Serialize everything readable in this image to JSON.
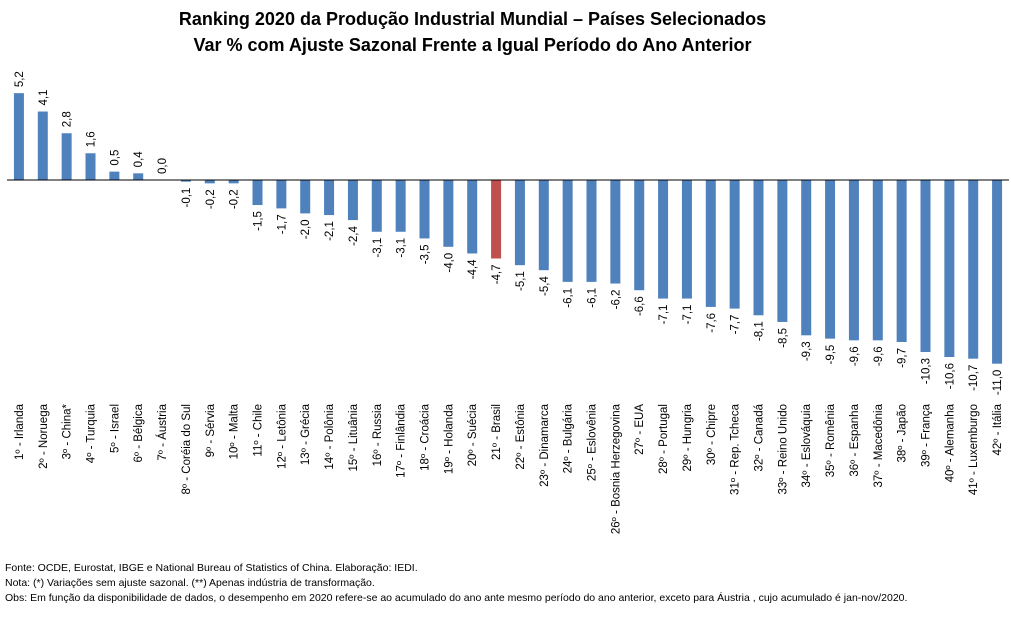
{
  "title_line1": "Ranking 2020 da Produção Industrial Mundial – Países Selecionados",
  "title_line2": "Var % com Ajuste Sazonal Frente a Igual Período do Ano Anterior",
  "notes": {
    "source": "Fonte:  OCDE, Eurostat, IBGE e National Bureau of Statistics of China. Elaboração: IEDI.",
    "note": "Nota: (*) Variações sem ajuste sazonal. (**) Apenas indústria de transformação.",
    "obs": "Obs: Em função da disponibilidade de dados, o desempenho  em 2020 refere-se ao acumulado do ano ante mesmo período do ano anterior, exceto para Áustria , cujo acumulado é jan-nov/2020."
  },
  "chart_data": {
    "type": "bar",
    "title": "Ranking 2020 da Produção Industrial Mundial – Países Selecionados — Var % com Ajuste Sazonal Frente a Igual Período do Ano Anterior",
    "categories": [
      "1º - Irlanda",
      "2º - Noruega",
      "3º - China*",
      "4º - Turquia",
      "5º - Israel",
      "6º - Bélgica",
      "7º - Áustria",
      "8º - Coréia do Sul",
      "9º - Sérvia",
      "10º - Malta",
      "11º - Chile",
      "12º - Letônia",
      "13º - Grécia",
      "14º - Polônia",
      "15º - Lituânia",
      "16º - Russia",
      "17º - Finlândia",
      "18º - Croácia",
      "19º - Holanda",
      "20º - Suécia",
      "21º - Brasil",
      "22º - Estônia",
      "23º - Dinamarca",
      "24º - Bulgária",
      "25º - Eslovênia",
      "26º - Bosnia Herzegovina",
      "27º - EUA",
      "28º - Portugal",
      "29º - Hungria",
      "30º - Chipre",
      "31º - Rep. Tcheca",
      "32º - Canadá",
      "33º - Reino Unido",
      "34º - Eslováquia",
      "35º - Romênia",
      "36º - Espanha",
      "37º - Macedônia",
      "38º - Japão",
      "39º - França",
      "40º - Alemanha",
      "41º - Luxemburgo",
      "42º - Itália"
    ],
    "values": [
      5.2,
      4.1,
      2.8,
      1.6,
      0.5,
      0.4,
      0.0,
      -0.1,
      -0.2,
      -0.2,
      -1.5,
      -1.7,
      -2.0,
      -2.1,
      -2.4,
      -3.1,
      -3.1,
      -3.5,
      -4.0,
      -4.4,
      -4.7,
      -5.1,
      -5.4,
      -6.1,
      -6.1,
      -6.2,
      -6.6,
      -7.1,
      -7.1,
      -7.6,
      -7.7,
      -8.1,
      -8.5,
      -9.3,
      -9.5,
      -9.6,
      -9.6,
      -9.7,
      -10.3,
      -10.6,
      -10.7,
      -11.0
    ],
    "value_labels": [
      "5,2",
      "4,1",
      "2,8",
      "1,6",
      "0,5",
      "0,4",
      "0,0",
      "-0,1",
      "-0,2",
      "-0,2",
      "-1,5",
      "-1,7",
      "-2,0",
      "-2,1",
      "-2,4",
      "-3,1",
      "-3,1",
      "-3,5",
      "-4,0",
      "-4,4",
      "-4,7",
      "-5,1",
      "-5,4",
      "-6,1",
      "-6,1",
      "-6,2",
      "-6,6",
      "-7,1",
      "-7,1",
      "-7,6",
      "-7,7",
      "-8,1",
      "-8,5",
      "-9,3",
      "-9,5",
      "-9,6",
      "-9,6",
      "-9,7",
      "-10,3",
      "-10,6",
      "-10,7",
      "-11,0"
    ],
    "highlight_index": 20,
    "colors": {
      "default": "#4F81BD",
      "highlight": "#C0504D",
      "axis": "#000000"
    },
    "ylim": [
      -11.0,
      5.2
    ],
    "grid": false,
    "legend": "none"
  }
}
